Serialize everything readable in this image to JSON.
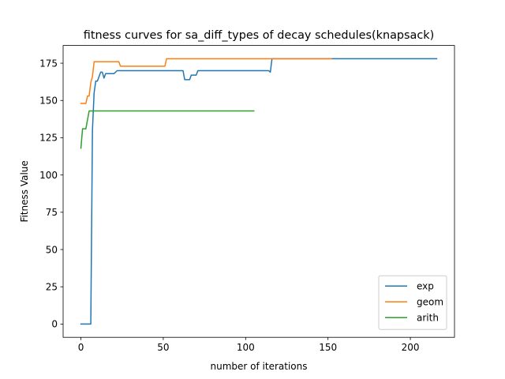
{
  "chart_data": {
    "type": "line",
    "title": "fitness curves for sa_diff_types of decay schedules(knapsack)",
    "xlabel": "number of iterations",
    "ylabel": "Fitness Value",
    "xlim": [
      -10.8,
      226.8
    ],
    "ylim": [
      -8.9,
      186.9
    ],
    "xticks": [
      0,
      50,
      100,
      150,
      200
    ],
    "yticks": [
      0,
      25,
      50,
      75,
      100,
      125,
      150,
      175
    ],
    "grid": false,
    "legend_position": "lower-right",
    "series": [
      {
        "name": "exp",
        "color": "#1f77b4",
        "points": [
          [
            0,
            0
          ],
          [
            6,
            0
          ],
          [
            7,
            130
          ],
          [
            8,
            155
          ],
          [
            9,
            163
          ],
          [
            10,
            163
          ],
          [
            11,
            166
          ],
          [
            12,
            169
          ],
          [
            13,
            169
          ],
          [
            14,
            165
          ],
          [
            15,
            168
          ],
          [
            20,
            168
          ],
          [
            22,
            170
          ],
          [
            62,
            170
          ],
          [
            63,
            164
          ],
          [
            66,
            164
          ],
          [
            67,
            167
          ],
          [
            70,
            167
          ],
          [
            71,
            170
          ],
          [
            114,
            170
          ],
          [
            115,
            169
          ],
          [
            116,
            178
          ],
          [
            216,
            178
          ]
        ]
      },
      {
        "name": "geom",
        "color": "#ff7f0e",
        "points": [
          [
            0,
            148
          ],
          [
            3,
            148
          ],
          [
            4,
            153
          ],
          [
            5,
            153
          ],
          [
            6,
            162
          ],
          [
            7,
            166
          ],
          [
            8,
            176
          ],
          [
            23,
            176
          ],
          [
            24,
            173
          ],
          [
            51,
            173
          ],
          [
            52,
            178
          ],
          [
            152,
            178
          ]
        ]
      },
      {
        "name": "arith",
        "color": "#2ca02c",
        "points": [
          [
            0,
            118
          ],
          [
            1,
            131
          ],
          [
            3,
            131
          ],
          [
            4,
            137
          ],
          [
            5,
            143
          ],
          [
            105,
            143
          ]
        ]
      }
    ]
  }
}
